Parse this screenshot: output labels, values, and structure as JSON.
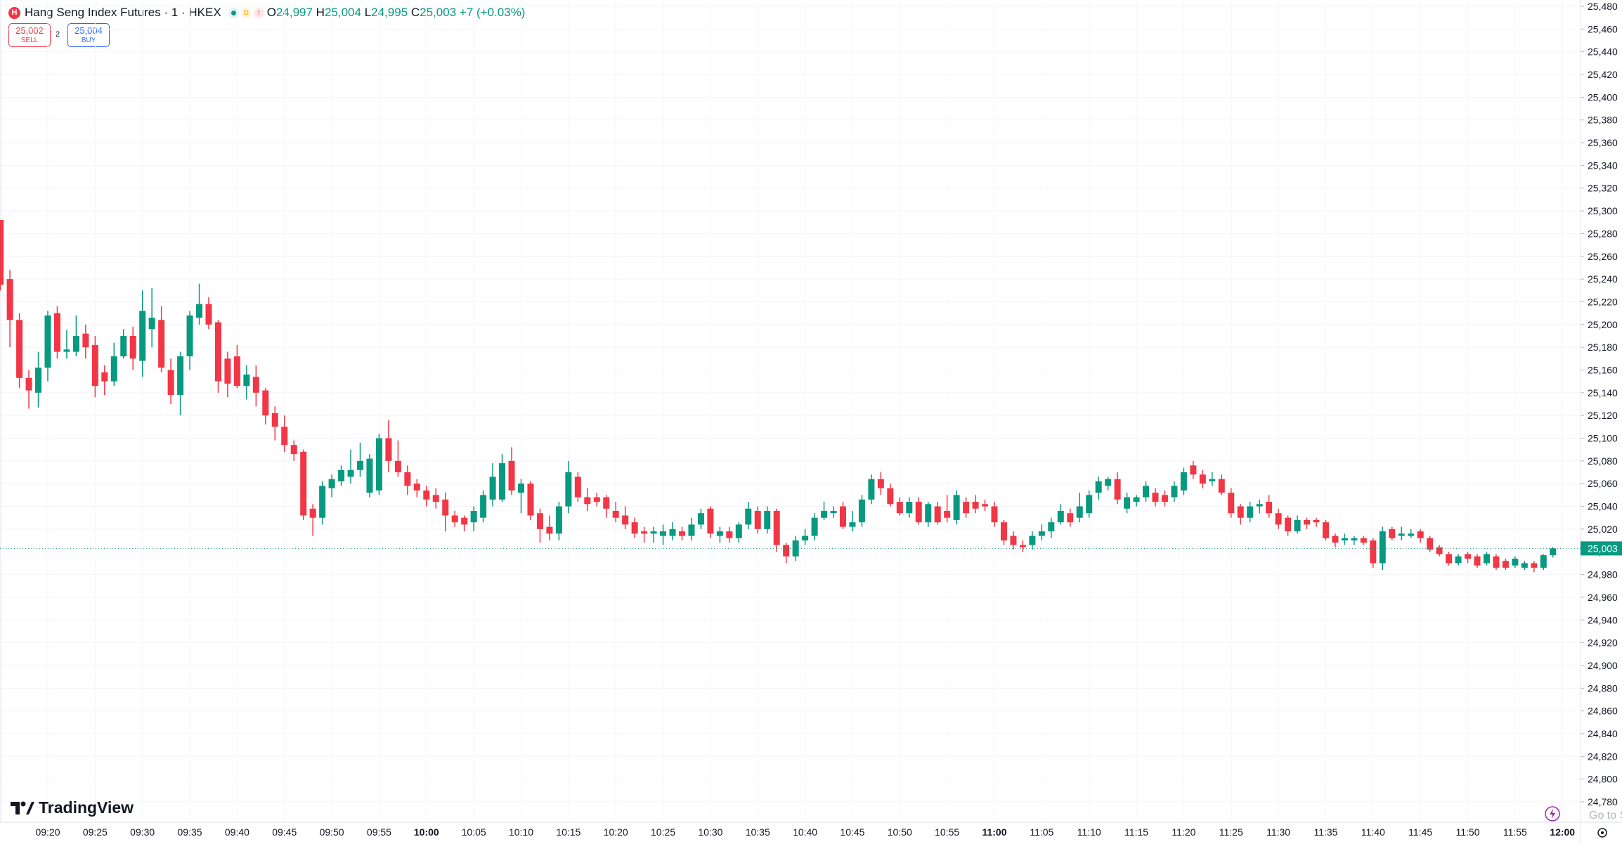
{
  "header": {
    "symbol_badge": "H",
    "title": "Hang Seng Index Futures · 1 · HKEX",
    "badges": [
      "D",
      "!"
    ],
    "ohlc": [
      {
        "key": "O",
        "value": "24,997"
      },
      {
        "key": "H",
        "value": "25,004"
      },
      {
        "key": "L",
        "value": "24,995"
      },
      {
        "key": "C",
        "value": "25,003"
      }
    ],
    "change": "+7 (+0.03%)"
  },
  "trade": {
    "sell_price": "25,002",
    "sell_label": "SELL",
    "spread": "2",
    "buy_price": "25,004",
    "buy_label": "BUY"
  },
  "branding": "TradingView",
  "overlay_text": "Go to S",
  "chart_data": {
    "type": "candlestick",
    "up_color": "#089981",
    "down_color": "#f23645",
    "grid": true,
    "last_price": {
      "value": 25003,
      "label": "25,003"
    },
    "ylim": [
      24780,
      25480
    ],
    "yticks": [
      {
        "value": 25480,
        "label": "25,480"
      },
      {
        "value": 25460,
        "label": "25,460"
      },
      {
        "value": 25440,
        "label": "25,440"
      },
      {
        "value": 25420,
        "label": "25,420"
      },
      {
        "value": 25400,
        "label": "25,400"
      },
      {
        "value": 25380,
        "label": "25,380"
      },
      {
        "value": 25360,
        "label": "25,360"
      },
      {
        "value": 25340,
        "label": "25,340"
      },
      {
        "value": 25320,
        "label": "25,320"
      },
      {
        "value": 25300,
        "label": "25,300"
      },
      {
        "value": 25280,
        "label": "25,280"
      },
      {
        "value": 25260,
        "label": "25,260"
      },
      {
        "value": 25240,
        "label": "25,240"
      },
      {
        "value": 25220,
        "label": "25,220"
      },
      {
        "value": 25200,
        "label": "25,200"
      },
      {
        "value": 25180,
        "label": "25,180"
      },
      {
        "value": 25160,
        "label": "25,160"
      },
      {
        "value": 25140,
        "label": "25,140"
      },
      {
        "value": 25120,
        "label": "25,120"
      },
      {
        "value": 25100,
        "label": "25,100"
      },
      {
        "value": 25080,
        "label": "25,080"
      },
      {
        "value": 25060,
        "label": "25,060"
      },
      {
        "value": 25040,
        "label": "25,040"
      },
      {
        "value": 25020,
        "label": "25,020"
      },
      {
        "value": 25000,
        "label": "25,000"
      },
      {
        "value": 24980,
        "label": "24,980"
      },
      {
        "value": 24960,
        "label": "24,960"
      },
      {
        "value": 24940,
        "label": "24,940"
      },
      {
        "value": 24920,
        "label": "24,920"
      },
      {
        "value": 24900,
        "label": "24,900"
      },
      {
        "value": 24880,
        "label": "24,880"
      },
      {
        "value": 24860,
        "label": "24,860"
      },
      {
        "value": 24840,
        "label": "24,840"
      },
      {
        "value": 24820,
        "label": "24,820"
      },
      {
        "value": 24800,
        "label": "24,800"
      },
      {
        "value": 24780,
        "label": "24,780"
      }
    ],
    "xticks": [
      "09:20",
      "09:25",
      "09:30",
      "09:35",
      "09:40",
      "09:45",
      "09:50",
      "09:55",
      "10:00",
      "10:05",
      "10:10",
      "10:15",
      "10:20",
      "10:25",
      "10:30",
      "10:35",
      "10:40",
      "10:45",
      "10:50",
      "10:55",
      "11:00",
      "11:05",
      "11:10",
      "11:15",
      "11:20",
      "11:25",
      "11:30",
      "11:35",
      "11:40",
      "11:45",
      "11:50",
      "11:55",
      "12:00"
    ],
    "x": [
      "09:15",
      "09:16",
      "09:17",
      "09:18",
      "09:19",
      "09:20",
      "09:21",
      "09:22",
      "09:23",
      "09:24",
      "09:25",
      "09:26",
      "09:27",
      "09:28",
      "09:29",
      "09:30",
      "09:31",
      "09:32",
      "09:33",
      "09:34",
      "09:35",
      "09:36",
      "09:37",
      "09:38",
      "09:39",
      "09:40",
      "09:41",
      "09:42",
      "09:43",
      "09:44",
      "09:45",
      "09:46",
      "09:47",
      "09:48",
      "09:49",
      "09:50",
      "09:51",
      "09:52",
      "09:53",
      "09:54",
      "09:55",
      "09:56",
      "09:57",
      "09:58",
      "09:59",
      "10:00",
      "10:01",
      "10:02",
      "10:03",
      "10:04",
      "10:05",
      "10:06",
      "10:07",
      "10:08",
      "10:09",
      "10:10",
      "10:11",
      "10:12",
      "10:13",
      "10:14",
      "10:15",
      "10:16",
      "10:17",
      "10:18",
      "10:19",
      "10:20",
      "10:21",
      "10:22",
      "10:23",
      "10:24",
      "10:25",
      "10:26",
      "10:27",
      "10:28",
      "10:29",
      "10:30",
      "10:31",
      "10:32",
      "10:33",
      "10:34",
      "10:35",
      "10:36",
      "10:37",
      "10:38",
      "10:39",
      "10:40",
      "10:41",
      "10:42",
      "10:43",
      "10:44",
      "10:45",
      "10:46",
      "10:47",
      "10:48",
      "10:49",
      "10:50",
      "10:51",
      "10:52",
      "10:53",
      "10:54",
      "10:55",
      "10:56",
      "10:57",
      "10:58",
      "10:59",
      "11:00",
      "11:01",
      "11:02",
      "11:03",
      "11:04",
      "11:05",
      "11:06",
      "11:07",
      "11:08",
      "11:09",
      "11:10",
      "11:11",
      "11:12",
      "11:13",
      "11:14",
      "11:15",
      "11:16",
      "11:17",
      "11:18",
      "11:19",
      "11:20",
      "11:21",
      "11:22",
      "11:23",
      "11:24",
      "11:25",
      "11:26",
      "11:27",
      "11:28",
      "11:29",
      "11:30",
      "11:31",
      "11:32",
      "11:33",
      "11:34",
      "11:35",
      "11:36",
      "11:37",
      "11:38",
      "11:39",
      "11:40",
      "11:41",
      "11:42",
      "11:43",
      "11:44",
      "11:45",
      "11:46",
      "11:47",
      "11:48",
      "11:49",
      "11:50",
      "11:51",
      "11:52",
      "11:53",
      "11:54",
      "11:55",
      "11:56",
      "11:57",
      "11:58",
      "11:59"
    ],
    "open": [
      25292,
      25240,
      25204,
      25153,
      25140,
      25162,
      25210,
      25176,
      25176,
      25192,
      25182,
      25158,
      25150,
      25172,
      25190,
      25168,
      25196,
      25204,
      25160,
      25138,
      25172,
      25206,
      25218,
      25202,
      25170,
      25172,
      25146,
      25154,
      25142,
      25122,
      25110,
      25094,
      25088,
      25038,
      25030,
      25056,
      25062,
      25066,
      25072,
      25052,
      25054,
      25100,
      25080,
      25070,
      25060,
      25054,
      25050,
      25046,
      25032,
      25030,
      25026,
      25030,
      25046,
      25046,
      25080,
      25052,
      25060,
      25034,
      25022,
      25016,
      25040,
      25066,
      25048,
      25048,
      25048,
      25036,
      25032,
      25026,
      25018,
      25016,
      25014,
      25014,
      25018,
      25014,
      25024,
      25038,
      25014,
      25018,
      25012,
      25024,
      25036,
      25020,
      25036,
      25006,
      24996,
      25010,
      25014,
      25030,
      25034,
      25040,
      25022,
      25026,
      25046,
      25064,
      25056,
      25044,
      25034,
      25044,
      25026,
      25040,
      25036,
      25028,
      25044,
      25044,
      25042,
      25040,
      25026,
      25014,
      25006,
      25006,
      25014,
      25018,
      25026,
      25034,
      25030,
      25034,
      25052,
      25058,
      25064,
      25038,
      25044,
      25048,
      25052,
      25050,
      25048,
      25054,
      25076,
      25068,
      25062,
      25064,
      25052,
      25040,
      25030,
      25040,
      25044,
      25034,
      25030,
      25018,
      25028,
      25028,
      25026,
      25014,
      25010,
      25010,
      25012,
      25010,
      24990,
      25020,
      25014,
      25014,
      25018,
      25012,
      25004,
      24998,
      24990,
      24998,
      24996,
      24990,
      24996,
      24992,
      24988,
      24986,
      24990,
      24986,
      24997
    ],
    "high": [
      25292,
      25248,
      25210,
      25160,
      25176,
      25212,
      25216,
      25195,
      25208,
      25200,
      25190,
      25164,
      25184,
      25196,
      25198,
      25230,
      25232,
      25216,
      25170,
      25176,
      25212,
      25236,
      25224,
      25204,
      25176,
      25182,
      25164,
      25164,
      25144,
      25128,
      25120,
      25098,
      25090,
      25042,
      25062,
      25068,
      25076,
      25090,
      25096,
      25086,
      25104,
      25116,
      25098,
      25076,
      25064,
      25058,
      25056,
      25052,
      25036,
      25032,
      25040,
      25054,
      25078,
      25086,
      25092,
      25064,
      25062,
      25038,
      25032,
      25044,
      25080,
      25070,
      25056,
      25052,
      25050,
      25044,
      25040,
      25030,
      25022,
      25022,
      25024,
      25026,
      25022,
      25030,
      25038,
      25040,
      25022,
      25022,
      25026,
      25044,
      25040,
      25040,
      25038,
      25008,
      25014,
      25020,
      25034,
      25044,
      25040,
      25044,
      25036,
      25050,
      25068,
      25070,
      25060,
      25048,
      25048,
      25048,
      25044,
      25044,
      25050,
      25054,
      25048,
      25050,
      25046,
      25044,
      25028,
      25018,
      25010,
      25018,
      25024,
      25030,
      25042,
      25038,
      25052,
      25054,
      25066,
      25066,
      25070,
      25052,
      25050,
      25062,
      25056,
      25054,
      25062,
      25074,
      25080,
      25072,
      25070,
      25068,
      25056,
      25042,
      25044,
      25046,
      25050,
      25038,
      25032,
      25032,
      25030,
      25030,
      25028,
      25016,
      25016,
      25014,
      25014,
      25012,
      25022,
      25022,
      25022,
      25020,
      25020,
      25014,
      25006,
      25000,
      24998,
      25000,
      24998,
      25000,
      24998,
      24994,
      24996,
      24992,
      24992,
      24998,
      25004
    ],
    "low": [
      25230,
      25180,
      25144,
      25126,
      25127,
      25150,
      25170,
      25170,
      25172,
      25170,
      25136,
      25138,
      25146,
      25170,
      25160,
      25154,
      25180,
      25158,
      25130,
      25120,
      25160,
      25200,
      25196,
      25140,
      25136,
      25144,
      25134,
      25128,
      25112,
      25098,
      25088,
      25080,
      25028,
      25014,
      25024,
      25048,
      25058,
      25060,
      25066,
      25048,
      25050,
      25070,
      25066,
      25050,
      25048,
      25040,
      25038,
      25018,
      25022,
      25018,
      25018,
      25026,
      25040,
      25044,
      25050,
      25034,
      25028,
      25008,
      25010,
      25010,
      25034,
      25044,
      25036,
      25040,
      25030,
      25026,
      25020,
      25012,
      25008,
      25008,
      25006,
      25010,
      25010,
      25010,
      25020,
      25012,
      25008,
      25008,
      25008,
      25020,
      25016,
      25016,
      25000,
      24990,
      24992,
      25006,
      25010,
      25028,
      25030,
      25020,
      25018,
      25022,
      25042,
      25050,
      25040,
      25032,
      25030,
      25024,
      25022,
      25024,
      25026,
      25024,
      25030,
      25034,
      25036,
      25022,
      25006,
      25002,
      25000,
      25002,
      25010,
      25012,
      25024,
      25022,
      25026,
      25030,
      25046,
      25054,
      25042,
      25034,
      25040,
      25044,
      25040,
      25040,
      25044,
      25050,
      25064,
      25056,
      25058,
      25050,
      25030,
      25024,
      25026,
      25034,
      25030,
      25020,
      25014,
      25016,
      25020,
      25022,
      25010,
      25004,
      25006,
      25006,
      25006,
      24986,
      24984,
      25010,
      25010,
      25012,
      25008,
      25000,
      24996,
      24988,
      24988,
      24990,
      24986,
      24988,
      24984,
      24984,
      24986,
      24984,
      24982,
      24984,
      24995
    ],
    "close": [
      25235,
      25204,
      25153,
      25142,
      25162,
      25208,
      25176,
      25178,
      25190,
      25180,
      25146,
      25150,
      25172,
      25190,
      25170,
      25212,
      25206,
      25162,
      25138,
      25172,
      25208,
      25218,
      25200,
      25150,
      25148,
      25146,
      25156,
      25140,
      25120,
      25110,
      25094,
      25086,
      25032,
      25030,
      25058,
      25064,
      25072,
      25072,
      25080,
      25082,
      25100,
      25080,
      25070,
      25058,
      25054,
      25046,
      25044,
      25032,
      25026,
      25024,
      25036,
      25050,
      25066,
      25078,
      25054,
      25060,
      25032,
      25020,
      25016,
      25040,
      25070,
      25048,
      25042,
      25044,
      25038,
      25030,
      25024,
      25016,
      25016,
      25018,
      25018,
      25020,
      25014,
      25024,
      25034,
      25016,
      25018,
      25012,
      25024,
      25038,
      25020,
      25036,
      25006,
      24996,
      25010,
      25014,
      25030,
      25036,
      25036,
      25022,
      25026,
      25046,
      25064,
      25056,
      25042,
      25034,
      25044,
      25026,
      25042,
      25026,
      25030,
      25050,
      25034,
      25038,
      25040,
      25026,
      25010,
      25006,
      25004,
      25014,
      25018,
      25026,
      25036,
      25026,
      25040,
      25050,
      25062,
      25064,
      25046,
      25048,
      25048,
      25058,
      25044,
      25044,
      25058,
      25070,
      25068,
      25060,
      25064,
      25052,
      25034,
      25030,
      25040,
      25042,
      25034,
      25024,
      25018,
      25028,
      25024,
      25026,
      25012,
      25008,
      25012,
      25012,
      25008,
      24990,
      25018,
      25012,
      25016,
      25016,
      25012,
      25002,
      24998,
      24990,
      24996,
      24994,
      24988,
      24998,
      24986,
      24986,
      24994,
      24990,
      24986,
      24997,
      25003
    ]
  }
}
